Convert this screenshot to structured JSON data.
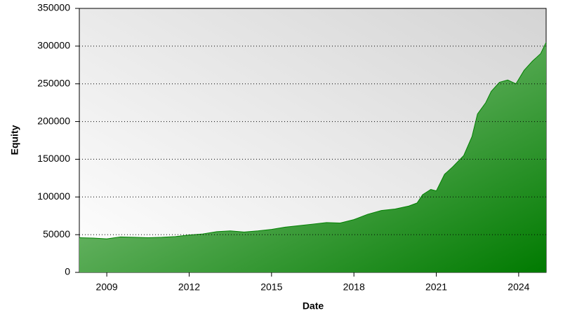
{
  "chart_data": {
    "type": "area",
    "xlabel": "Date",
    "ylabel": "Equity",
    "x": [
      2008.0,
      2008.5,
      2009.0,
      2009.5,
      2010.0,
      2010.5,
      2011.0,
      2011.5,
      2012.0,
      2012.5,
      2013.0,
      2013.5,
      2014.0,
      2014.5,
      2015.0,
      2015.5,
      2016.0,
      2016.5,
      2017.0,
      2017.5,
      2018.0,
      2018.5,
      2019.0,
      2019.5,
      2020.0,
      2020.3,
      2020.5,
      2020.8,
      2021.0,
      2021.3,
      2021.6,
      2022.0,
      2022.3,
      2022.5,
      2022.8,
      2023.0,
      2023.3,
      2023.6,
      2023.9,
      2024.2,
      2024.5,
      2024.8,
      2025.0
    ],
    "values": [
      46000,
      45500,
      44500,
      47000,
      46500,
      46000,
      46500,
      47500,
      49500,
      51000,
      54000,
      55000,
      53500,
      55000,
      57000,
      60000,
      62000,
      64000,
      66000,
      65500,
      70000,
      77000,
      82000,
      84000,
      88000,
      92000,
      103000,
      110000,
      108000,
      130000,
      140000,
      155000,
      180000,
      210000,
      225000,
      240000,
      252000,
      255000,
      250000,
      268000,
      280000,
      290000,
      305000
    ],
    "color": "#008000",
    "xlim": [
      2008,
      2025
    ],
    "xticks": [
      2009,
      2012,
      2015,
      2018,
      2021,
      2024
    ],
    "ylim": [
      0,
      350000
    ],
    "yticks": [
      0,
      50000,
      100000,
      150000,
      200000,
      250000,
      300000,
      350000
    ],
    "grid": true
  }
}
